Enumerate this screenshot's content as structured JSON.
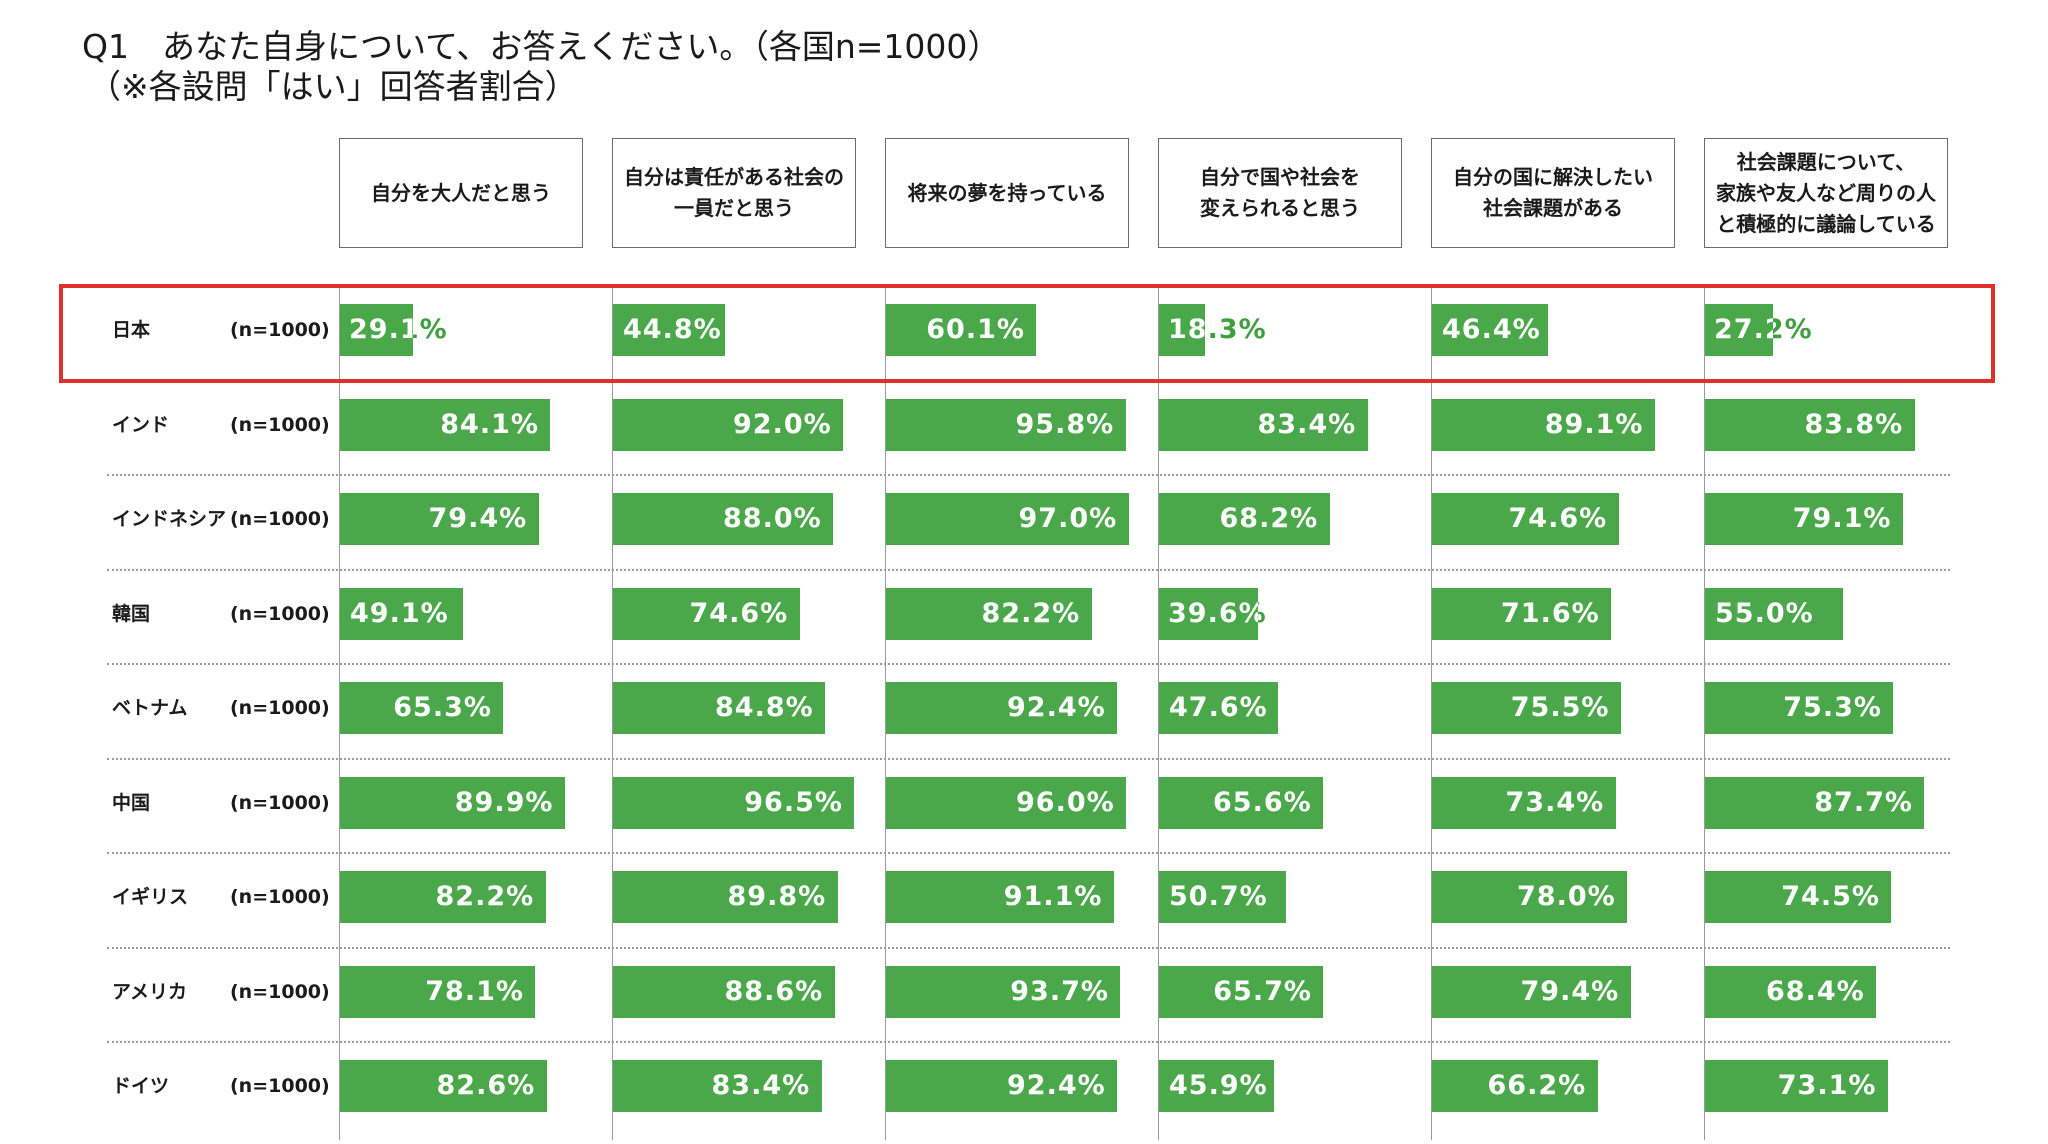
{
  "header": {
    "title": "Q1　あなた自身について、お答えください。（各国n=1000）",
    "subtitle": "（※各設問「はい」回答者割合）"
  },
  "chart_data": {
    "type": "bar",
    "orientation": "horizontal",
    "xlim": [
      0,
      100
    ],
    "unit": "%",
    "highlight_row": "日本",
    "questions": [
      "自分を大人だと思う",
      "自分は責任がある社会の\n一員だと思う",
      "将来の夢を持っている",
      "自分で国や社会を\n変えられると思う",
      "自分の国に解決したい\n社会課題がある",
      "社会課題について、\n家族や友人など周りの人\nと積極的に議論している"
    ],
    "rows": [
      {
        "country": "日本",
        "n": "(n=1000)",
        "values": [
          29.1,
          44.8,
          60.1,
          18.3,
          46.4,
          27.2
        ]
      },
      {
        "country": "インド",
        "n": "(n=1000)",
        "values": [
          84.1,
          92.0,
          95.8,
          83.4,
          89.1,
          83.8
        ]
      },
      {
        "country": "インドネシア",
        "n": "(n=1000)",
        "values": [
          79.4,
          88.0,
          97.0,
          68.2,
          74.6,
          79.1
        ]
      },
      {
        "country": "韓国",
        "n": "(n=1000)",
        "values": [
          49.1,
          74.6,
          82.2,
          39.6,
          71.6,
          55.0
        ]
      },
      {
        "country": "ベトナム",
        "n": "(n=1000)",
        "values": [
          65.3,
          84.8,
          92.4,
          47.6,
          75.5,
          75.3
        ]
      },
      {
        "country": "中国",
        "n": "(n=1000)",
        "values": [
          89.9,
          96.5,
          96.0,
          65.6,
          73.4,
          87.7
        ]
      },
      {
        "country": "イギリス",
        "n": "(n=1000)",
        "values": [
          82.2,
          89.8,
          91.1,
          50.7,
          78.0,
          74.5
        ]
      },
      {
        "country": "アメリカ",
        "n": "(n=1000)",
        "values": [
          78.1,
          88.6,
          93.7,
          65.7,
          79.4,
          68.4
        ]
      },
      {
        "country": "ドイツ",
        "n": "(n=1000)",
        "values": [
          82.6,
          83.4,
          92.4,
          45.9,
          66.2,
          73.1
        ]
      }
    ]
  },
  "colors": {
    "bar": "#4aa84a",
    "highlight": "#e0302b",
    "outside_label": "#3f9f3f"
  }
}
